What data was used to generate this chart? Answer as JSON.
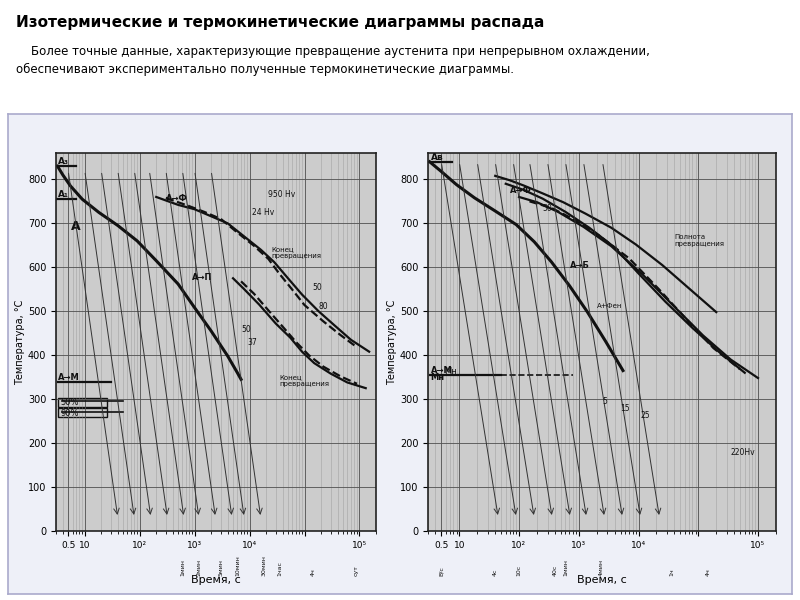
{
  "title": "Изотермические и термокинетические диаграммы распада",
  "subtitle1": "    Более точные данные, характеризующие превращение аустенита при непрерывном охлаждении,",
  "subtitle2": "обеспечивают экспериментально полученные термокинетические диаграммы.",
  "fig_bg": "#ffffff",
  "plot_bg": "#cccccc",
  "line_color": "#111111",
  "diagram1_xlabel": "Время, с",
  "diagram1_ylabel": "Температура, °С",
  "diagram2_xlabel": "Время, с",
  "diagram2_ylabel": "Температура, °С"
}
